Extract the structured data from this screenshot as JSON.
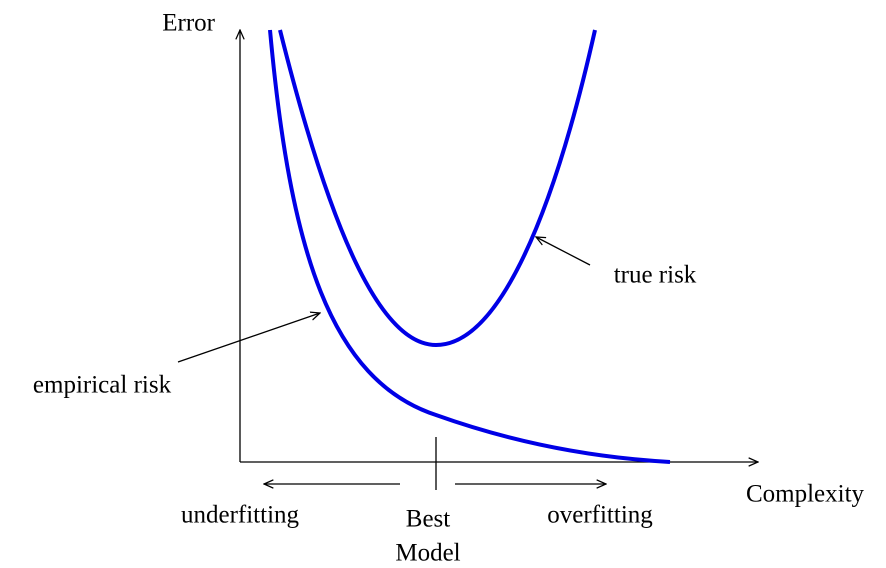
{
  "axes": {
    "y_label": "Error",
    "x_label": "Complexity"
  },
  "curves": [
    {
      "label": "true risk"
    },
    {
      "label": "empirical risk"
    }
  ],
  "regions": {
    "left": "underfitting",
    "right": "overfitting"
  },
  "marker": {
    "lines": [
      "Best",
      "Model"
    ]
  }
}
